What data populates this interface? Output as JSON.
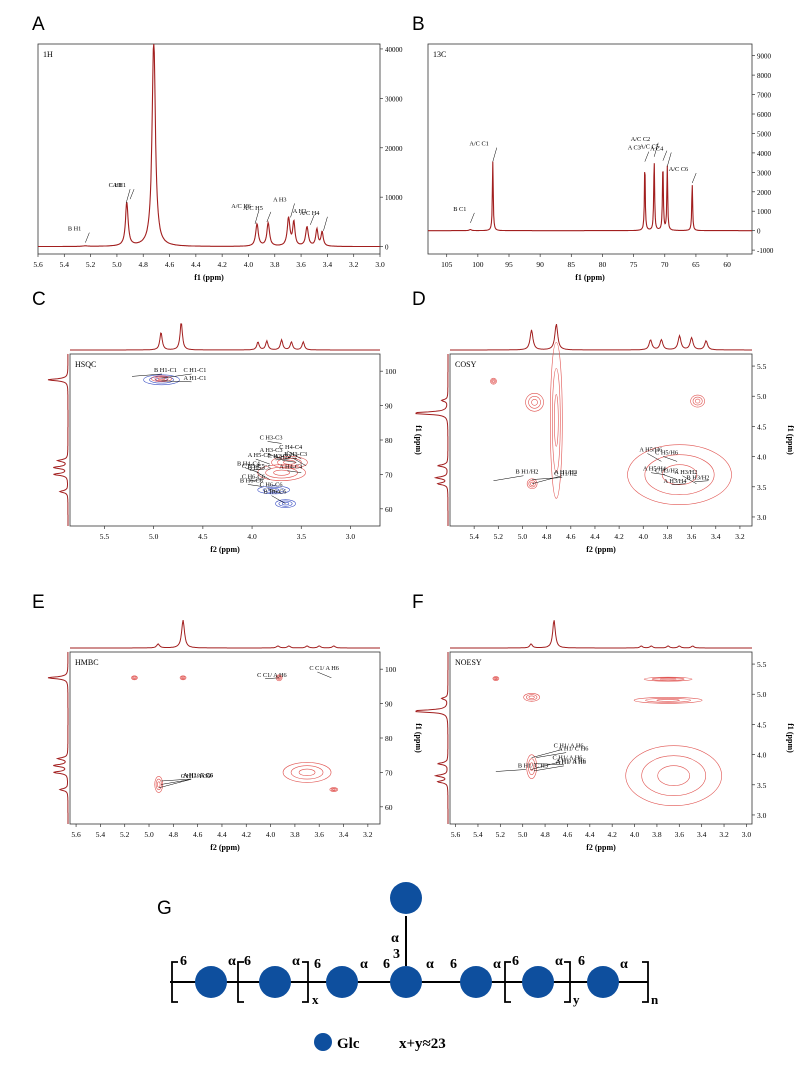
{
  "panels": [
    {
      "letter": "A",
      "tag": "1H",
      "type": "line",
      "xlabel": "f1 (ppm)",
      "xticks": [
        5.6,
        5.4,
        5.2,
        5.0,
        4.8,
        4.6,
        4.4,
        4.2,
        4.0,
        3.8,
        3.6,
        3.4,
        3.2,
        3.0
      ],
      "yticks": [
        0,
        10000,
        20000,
        30000,
        40000
      ],
      "peaks": [
        {
          "x": 5.24,
          "h": 120,
          "w": 0.02
        },
        {
          "x": 4.925,
          "h": 8800,
          "w": 0.012
        },
        {
          "x": 4.72,
          "h": 42000,
          "w": 0.015
        },
        {
          "x": 3.935,
          "h": 4500,
          "w": 0.012
        },
        {
          "x": 3.85,
          "h": 4700,
          "w": 0.012
        },
        {
          "x": 3.695,
          "h": 5700,
          "w": 0.012
        },
        {
          "x": 3.655,
          "h": 4800,
          "w": 0.01
        },
        {
          "x": 3.555,
          "h": 3900,
          "w": 0.012
        },
        {
          "x": 3.48,
          "h": 3400,
          "w": 0.01
        },
        {
          "x": 3.44,
          "h": 2900,
          "w": 0.01
        }
      ],
      "labels": [
        {
          "text": "B H1",
          "x": 5.24,
          "y": 800
        },
        {
          "text": "C H1",
          "x": 4.93,
          "y": 8800
        },
        {
          "text": "A H1",
          "x": 4.9,
          "y": 9600
        },
        {
          "text": "A/C H6",
          "x": 3.95,
          "y": 4600
        },
        {
          "text": "A/C H5",
          "x": 3.86,
          "y": 5000
        },
        {
          "text": "A H3",
          "x": 3.68,
          "y": 5900
        },
        {
          "text": "A H2",
          "x": 3.53,
          "y": 4400
        },
        {
          "text": "A/C H4",
          "x": 3.43,
          "y": 3200
        }
      ]
    },
    {
      "letter": "B",
      "tag": "13C",
      "type": "line",
      "xlabel": "f1 (ppm)",
      "xticks": [
        105,
        100,
        95,
        90,
        85,
        80,
        75,
        70,
        65,
        60
      ],
      "yticks": [
        -1000,
        0,
        1000,
        2000,
        3000,
        4000,
        5000,
        6000,
        7000,
        8000,
        9000
      ],
      "peaks": [
        {
          "x": 101.2,
          "h": 60,
          "w": 0.2
        },
        {
          "x": 97.6,
          "h": 3550,
          "w": 0.08
        },
        {
          "x": 73.2,
          "h": 3550,
          "w": 0.08
        },
        {
          "x": 71.7,
          "h": 3800,
          "w": 0.08
        },
        {
          "x": 70.3,
          "h": 3600,
          "w": 0.08
        },
        {
          "x": 69.6,
          "h": 3300,
          "w": 0.08
        },
        {
          "x": 65.6,
          "h": 2450,
          "w": 0.08
        }
      ],
      "labels": [
        {
          "text": "B C1",
          "x": 101.2,
          "y": 400
        },
        {
          "text": "A/C C1",
          "x": 97.6,
          "y": 3550
        },
        {
          "text": "A C3",
          "x": 73.2,
          "y": 3550
        },
        {
          "text": "A/C C2",
          "x": 71.7,
          "y": 3800
        },
        {
          "text": "A/C C5",
          "x": 70.3,
          "y": 3600
        },
        {
          "text": "A C4",
          "x": 69.6,
          "y": 3300
        },
        {
          "text": "A/C C6",
          "x": 65.6,
          "y": 2450
        }
      ]
    },
    {
      "letter": "C",
      "tag": "HSQC",
      "type": "heatmap",
      "xlabel": "f2 (ppm)",
      "ylabel": "f1 (ppm)",
      "xticks": [
        5.5,
        5.0,
        4.5,
        4.0,
        3.5,
        3.0
      ],
      "yticks": [
        60,
        70,
        80,
        90,
        100
      ],
      "labels": [
        {
          "text": "B H6-C6",
          "x": 3.66,
          "y": 61.5
        },
        {
          "text": "C H6-C6",
          "x": 3.7,
          "y": 64.5
        },
        {
          "text": "B H6-C6",
          "x": 3.9,
          "y": 66.5
        },
        {
          "text": "C H6-C6",
          "x": 3.88,
          "y": 68.5
        },
        {
          "text": "B H5-C5",
          "x": 3.82,
          "y": 68.5
        },
        {
          "text": "B H4-C4",
          "x": 3.93,
          "y": 70.5
        },
        {
          "text": "A H4-C4",
          "x": 3.5,
          "y": 70.5
        },
        {
          "text": "C H5-C5",
          "x": 3.88,
          "y": 71.5
        },
        {
          "text": "B H3-C3",
          "x": 3.45,
          "y": 72.5
        },
        {
          "text": "A H5-C5",
          "x": 3.82,
          "y": 73
        },
        {
          "text": "A H2-C2",
          "x": 3.55,
          "y": 73.5
        },
        {
          "text": "C H2-C2",
          "x": 3.62,
          "y": 74.5
        },
        {
          "text": "C H4-C4",
          "x": 3.5,
          "y": 74.5
        },
        {
          "text": "A H3-C3",
          "x": 3.7,
          "y": 74.5
        },
        {
          "text": "C H3-C3",
          "x": 3.7,
          "y": 79
        },
        {
          "text": "A H1-C1",
          "x": 4.92,
          "y": 97.2
        },
        {
          "text": "B H1-C1",
          "x": 5.22,
          "y": 98.5
        },
        {
          "text": "C H1-C1",
          "x": 4.92,
          "y": 98
        }
      ]
    },
    {
      "letter": "D",
      "tag": "COSY",
      "type": "heatmap",
      "xlabel": "f2 (ppm)",
      "ylabel": "f1 (ppm)",
      "xticks": [
        5.4,
        5.2,
        5.0,
        4.8,
        4.6,
        4.4,
        4.2,
        4.0,
        3.8,
        3.6,
        3.4,
        3.2
      ],
      "yticks": [
        3.0,
        3.5,
        4.0,
        4.5,
        5.0,
        5.5
      ],
      "labels": [
        {
          "text": "A H1/H2",
          "x": 4.92,
          "y": 3.55
        },
        {
          "text": "B H1/H2",
          "x": 5.24,
          "y": 3.6
        },
        {
          "text": "C H1/H2",
          "x": 4.92,
          "y": 3.62
        },
        {
          "text": "A H3/H4",
          "x": 3.65,
          "y": 3.55
        },
        {
          "text": "A H3/H2",
          "x": 3.56,
          "y": 3.55
        },
        {
          "text": "C H3/H2",
          "x": 3.72,
          "y": 3.62
        },
        {
          "text": "A H5/H4",
          "x": 3.82,
          "y": 3.7
        },
        {
          "text": "B H3/H2",
          "x": 3.46,
          "y": 3.6
        },
        {
          "text": "A H5/H6",
          "x": 3.85,
          "y": 3.92
        },
        {
          "text": "C H5/H6",
          "x": 3.72,
          "y": 3.92
        }
      ]
    },
    {
      "letter": "E",
      "tag": "HMBC",
      "type": "heatmap",
      "xlabel": "f2 (ppm)",
      "ylabel": "f1 (ppm)",
      "xticks": [
        5.6,
        5.4,
        5.2,
        5.0,
        4.8,
        4.6,
        4.4,
        4.2,
        4.0,
        3.8,
        3.6,
        3.4,
        3.2
      ],
      "yticks": [
        60,
        70,
        80,
        90,
        100
      ],
      "labels": [
        {
          "text": "C H1/ A C6",
          "x": 4.92,
          "y": 65.5
        },
        {
          "text": "A H1/ A C6",
          "x": 4.9,
          "y": 66.5
        },
        {
          "text": "A H1/ C C6",
          "x": 4.9,
          "y": 67.5
        },
        {
          "text": "C C1/ A H6",
          "x": 3.93,
          "y": 97.5
        },
        {
          "text": "C C1/ A H6",
          "x": 3.5,
          "y": 97.5
        }
      ]
    },
    {
      "letter": "F",
      "tag": "NOESY",
      "type": "heatmap",
      "xlabel": "f2 (ppm)",
      "ylabel": "f1 (ppm)",
      "xticks": [
        5.6,
        5.4,
        5.2,
        5.0,
        4.8,
        4.6,
        4.4,
        4.2,
        4.0,
        3.8,
        3.6,
        3.4,
        3.2,
        3.0
      ],
      "yticks": [
        3.0,
        3.5,
        4.0,
        4.5,
        5.0,
        5.5
      ],
      "labels": [
        {
          "text": "C H1/ A H6",
          "x": 4.93,
          "y": 3.75
        },
        {
          "text": "A H1/ A H6",
          "x": 4.9,
          "y": 3.73
        },
        {
          "text": "B H1/ C H3",
          "x": 5.24,
          "y": 3.72
        },
        {
          "text": "A H1/ A H6",
          "x": 4.9,
          "y": 3.85
        },
        {
          "text": "C H1/ A H6",
          "x": 4.92,
          "y": 3.95
        },
        {
          "text": "A H1/ C H6",
          "x": 4.88,
          "y": 3.95
        }
      ]
    }
  ],
  "structure": {
    "letter": "G",
    "alpha": "α",
    "links": [
      "6",
      "6",
      "6",
      "6",
      "6",
      "6",
      "6",
      "3"
    ],
    "subscripts": [
      "x",
      "y",
      "n"
    ],
    "legend_label": "Glc",
    "equation": "x+y≈23"
  },
  "colors": {
    "spectrum": "#a21f1f",
    "contour_pos": "#e0524f",
    "contour_neg": "#3a4fc4",
    "residue": "#0e4f9e"
  }
}
